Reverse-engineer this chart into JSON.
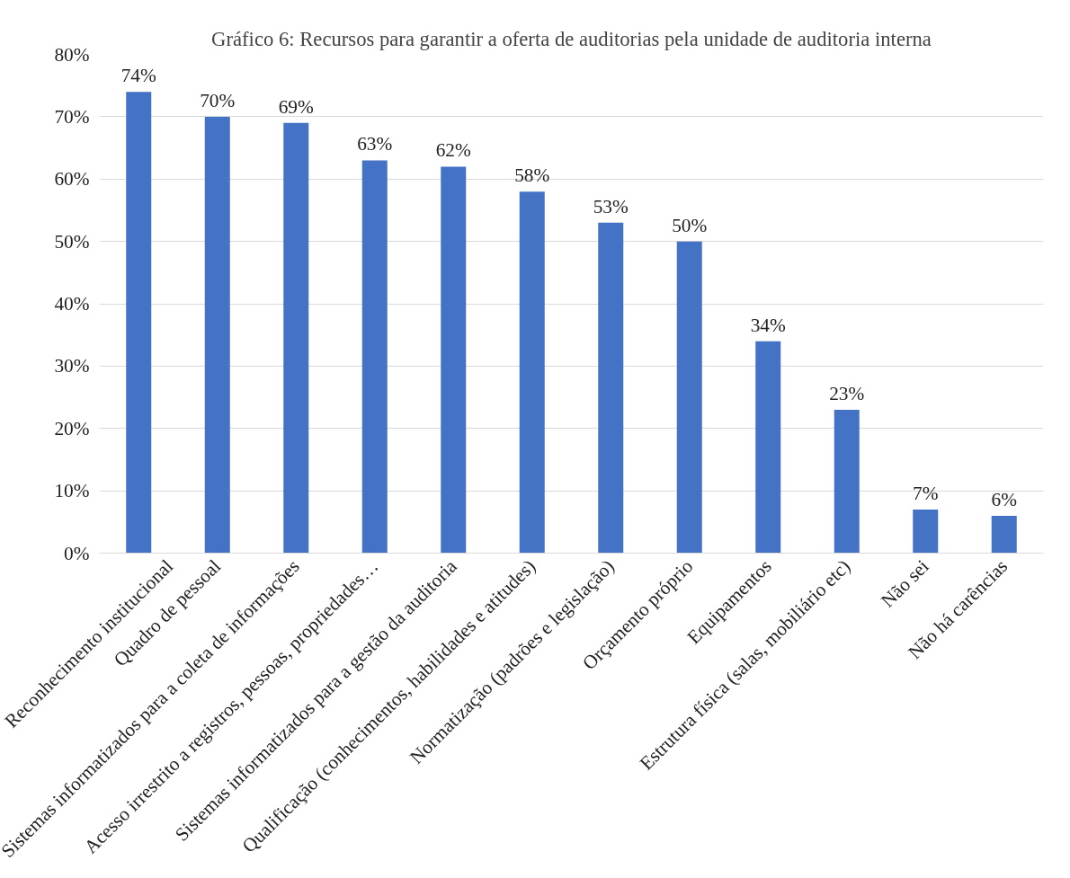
{
  "chart_data": {
    "type": "bar",
    "title": "Gráfico 6: Recursos para garantir a oferta de auditorias pela unidade de auditoria interna",
    "categories": [
      "Reconhecimento institucional",
      "Quadro de pessoal",
      "Sistemas informatizados para a coleta de informações",
      "Acesso irrestrito a registros, pessoas, propriedades…",
      "Sistemas informatizados para a gestão da auditoria",
      "Qualificação (conhecimentos, habilidades e atitudes)",
      "Normatização (padrões e legislação)",
      "Orçamento próprio",
      "Equipamentos",
      "Estrutura física (salas, mobiliário etc)",
      "Não sei",
      "Não há carências"
    ],
    "values": [
      74,
      70,
      69,
      63,
      62,
      58,
      53,
      50,
      34,
      23,
      7,
      6
    ],
    "value_labels": [
      "74%",
      "70%",
      "69%",
      "63%",
      "62%",
      "58%",
      "53%",
      "50%",
      "34%",
      "23%",
      "7%",
      "6%"
    ],
    "color": "#4472c4",
    "ylim": [
      0,
      80
    ],
    "yticks": [
      {
        "value": 0,
        "label": "0%"
      },
      {
        "value": 10,
        "label": "10%"
      },
      {
        "value": 20,
        "label": "20%"
      },
      {
        "value": 30,
        "label": "30%"
      },
      {
        "value": 40,
        "label": "40%"
      },
      {
        "value": 50,
        "label": "50%"
      },
      {
        "value": 60,
        "label": "60%"
      },
      {
        "value": 70,
        "label": "70%"
      },
      {
        "value": 80,
        "label": "80%"
      }
    ],
    "grid": "y"
  }
}
